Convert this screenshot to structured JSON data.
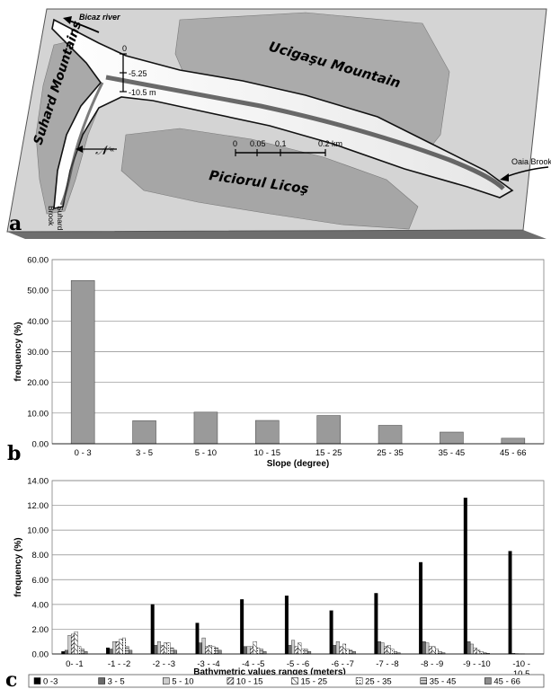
{
  "panel_a": {
    "letter": "a",
    "labels": {
      "bicaz_river": "Bicaz river",
      "suhard_mountains": "Suhard Mountains",
      "ucigasu_mountain": "Ucigaşu Mountain",
      "piciorul_licos": "Piciorul Licoş",
      "oaia_brook": "Oaia Brook",
      "suhard_brook_1": "Suhard",
      "suhard_brook_2": "Brook"
    },
    "depth_scale": {
      "top": "0",
      "mid": "-5.25",
      "bottom": "-10.5 m"
    },
    "distance_scale": {
      "t0": "0",
      "t1": "0.05",
      "t2": "0.1",
      "t3": "0.2 km"
    },
    "colors": {
      "platform": "#d0d0d0",
      "mountain": "#a8a8a8",
      "lake": "#f4f4f4",
      "deep": "#333333"
    }
  },
  "chart_data": [
    {
      "type": "bar",
      "panel": "b",
      "categories": [
        "0 - 3",
        "3 - 5",
        "5 - 10",
        "10 - 15",
        "15 - 25",
        "25 - 35",
        "35 - 45",
        "45 - 66"
      ],
      "values": [
        53.2,
        7.5,
        10.3,
        7.6,
        9.2,
        6.0,
        3.8,
        1.8
      ],
      "xlabel": "Slope (degree)",
      "ylabel": "frequency (%)",
      "ylim": [
        0,
        60
      ],
      "yticks": [
        "0.00",
        "10.00",
        "20.00",
        "30.00",
        "40.00",
        "50.00",
        "60.00"
      ],
      "grid": true,
      "bar_color": "#9a9a9a"
    },
    {
      "type": "bar",
      "panel": "c",
      "categories": [
        "0- -1",
        "-1 - -2",
        "-2 - -3",
        "-3 - -4",
        "-4 - -5",
        "-5 - -6",
        "-6 - -7",
        "-7 - -8",
        "-8 - -9",
        "-9 - -10",
        "-10 - -10.5"
      ],
      "category_lines": [
        [
          "0- -1"
        ],
        [
          "-1 - -2"
        ],
        [
          "-2 - -3"
        ],
        [
          "-3 - -4"
        ],
        [
          "-4 - -5"
        ],
        [
          "-5 - -6"
        ],
        [
          "-6 - -7"
        ],
        [
          "-7 - -8"
        ],
        [
          "-8 - -9"
        ],
        [
          "-9 - -10"
        ],
        [
          "-10 -",
          "10.5"
        ]
      ],
      "xlabel": "Bathymetric values ranges (meters)",
      "ylabel": "frequency (%)",
      "ylim": [
        0,
        14
      ],
      "yticks": [
        "0.00",
        "2.00",
        "4.00",
        "6.00",
        "8.00",
        "10.00",
        "12.00",
        "14.00"
      ],
      "grid": true,
      "legend_position": "bottom",
      "series": [
        {
          "name": "0 -3",
          "pattern": "solid-black",
          "values": [
            0.2,
            0.5,
            4.0,
            2.5,
            4.4,
            4.7,
            3.5,
            4.9,
            7.4,
            12.6,
            8.3
          ]
        },
        {
          "name": "3 - 5",
          "pattern": "dark-gray",
          "values": [
            0.3,
            0.4,
            0.7,
            0.9,
            0.6,
            0.7,
            0.7,
            1.0,
            1.0,
            1.0,
            0.05
          ]
        },
        {
          "name": "5 - 10",
          "pattern": "light-gray",
          "values": [
            1.5,
            1.0,
            1.0,
            1.3,
            0.6,
            1.1,
            1.0,
            0.9,
            0.9,
            0.8,
            0.03
          ]
        },
        {
          "name": "10 - 15",
          "pattern": "diag-dense",
          "values": [
            1.6,
            1.0,
            0.7,
            0.6,
            0.6,
            0.6,
            0.6,
            0.6,
            0.6,
            0.5,
            0.02
          ]
        },
        {
          "name": "15 - 25",
          "pattern": "diag-wide",
          "values": [
            1.8,
            1.2,
            0.9,
            0.7,
            1.0,
            0.9,
            0.8,
            0.7,
            0.6,
            0.3,
            0.02
          ]
        },
        {
          "name": "25 - 35",
          "pattern": "dotted",
          "values": [
            0.6,
            1.3,
            0.9,
            0.6,
            0.5,
            0.4,
            0.4,
            0.4,
            0.4,
            0.2,
            0.0
          ]
        },
        {
          "name": "35 - 45",
          "pattern": "grid-light",
          "values": [
            0.4,
            0.6,
            0.5,
            0.5,
            0.4,
            0.4,
            0.3,
            0.2,
            0.2,
            0.1,
            0.0
          ]
        },
        {
          "name": "45 - 66",
          "pattern": "mid-gray",
          "values": [
            0.2,
            0.3,
            0.3,
            0.3,
            0.2,
            0.2,
            0.2,
            0.1,
            0.1,
            0.05,
            0.0
          ]
        }
      ]
    }
  ]
}
